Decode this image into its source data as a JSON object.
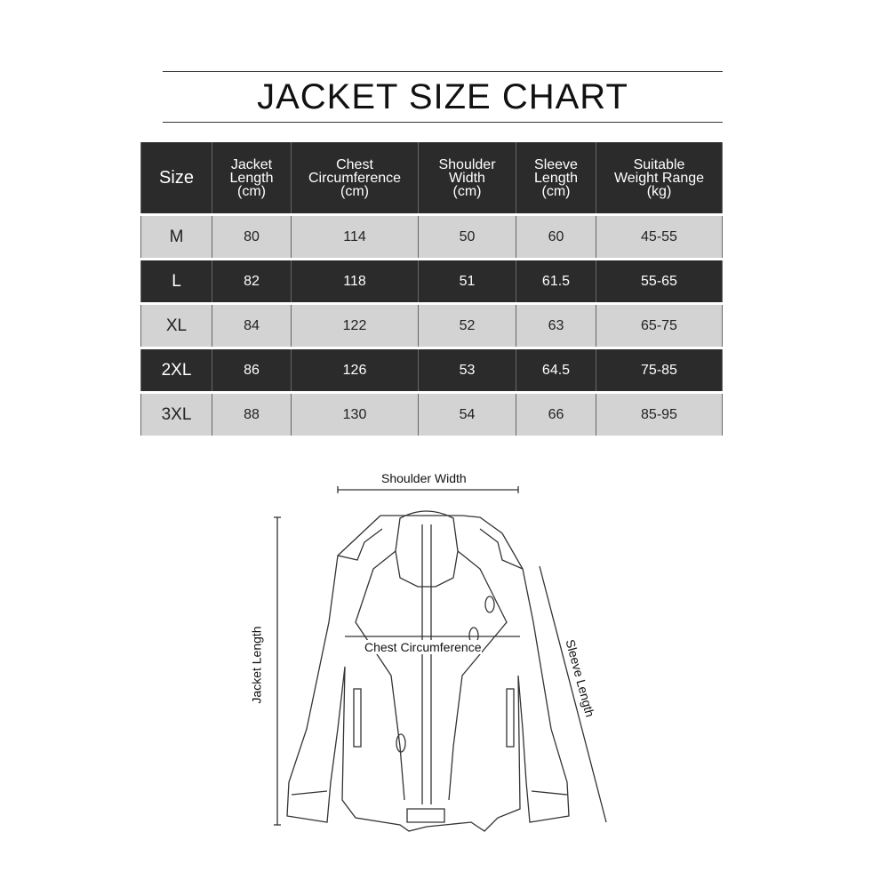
{
  "title": "JACKET SIZE CHART",
  "table": {
    "headers": [
      [
        "Size"
      ],
      [
        "Jacket",
        "Length",
        "(cm)"
      ],
      [
        "Chest",
        "Circumference",
        "(cm)"
      ],
      [
        "Shoulder",
        "Width",
        "(cm)"
      ],
      [
        "Sleeve",
        "Length",
        "(cm)"
      ],
      [
        "Suitable",
        "Weight Range",
        "(kg)"
      ]
    ],
    "rows": [
      [
        "M",
        "80",
        "114",
        "50",
        "60",
        "45-55"
      ],
      [
        "L",
        "82",
        "118",
        "51",
        "61.5",
        "55-65"
      ],
      [
        "XL",
        "84",
        "122",
        "52",
        "63",
        "65-75"
      ],
      [
        "2XL",
        "86",
        "126",
        "53",
        "64.5",
        "75-85"
      ],
      [
        "3XL",
        "88",
        "130",
        "54",
        "66",
        "85-95"
      ]
    ]
  },
  "diagram": {
    "shoulder_width": "Shoulder Width",
    "chest_circumference": "Chest Circumference",
    "jacket_length": "Jacket Length",
    "sleeve_length": "Sleeve Length"
  },
  "colors": {
    "dark_row": "#2b2b2b",
    "light_row": "#d3d3d3"
  }
}
